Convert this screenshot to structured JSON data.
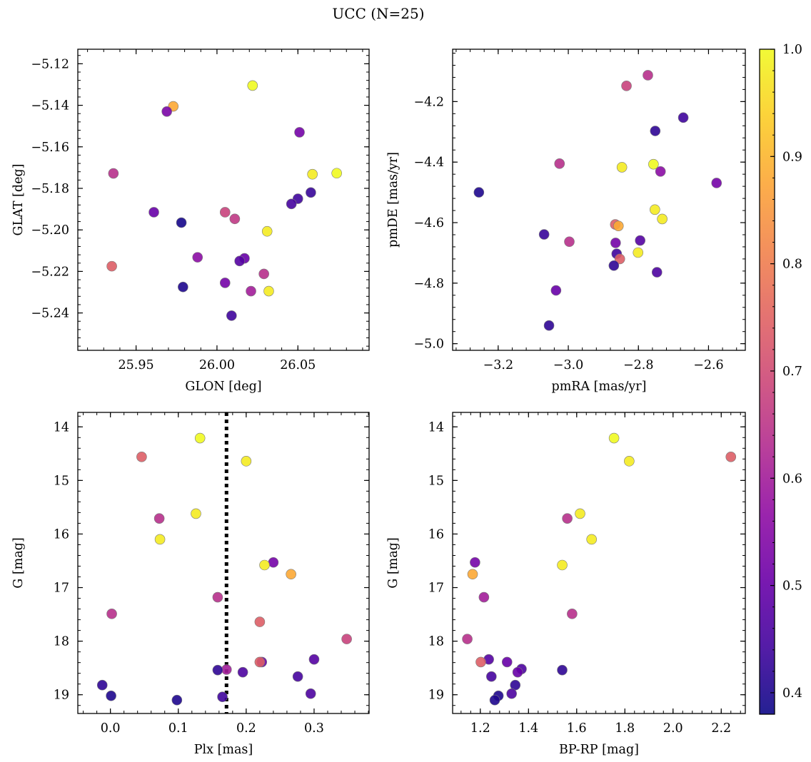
{
  "figure": {
    "title": "UCC (N=25)"
  },
  "colorbar": {
    "cmap": "plasma",
    "min": 0.38,
    "max": 1.0,
    "ticks": [
      0.4,
      0.5,
      0.6,
      0.7,
      0.8,
      0.9,
      1.0
    ],
    "tick_labels": [
      "0.4",
      "0.5",
      "0.6",
      "0.7",
      "0.8",
      "0.9",
      "1.0"
    ]
  },
  "chart_data": [
    {
      "type": "scatter",
      "xlabel": "GLON [deg]",
      "ylabel": "GLAT [deg]",
      "xlim": [
        25.914,
        26.094
      ],
      "ylim": [
        -5.258,
        -5.113
      ],
      "xticks": [
        25.95,
        26.0,
        26.05
      ],
      "xtick_labels": [
        "25.95",
        "26.00",
        "26.05"
      ],
      "yticks": [
        -5.24,
        -5.22,
        -5.2,
        -5.18,
        -5.16,
        -5.14,
        -5.12
      ],
      "ytick_labels": [
        "−5.24",
        "−5.22",
        "−5.20",
        "−5.18",
        "−5.16",
        "−5.14",
        "−5.12"
      ],
      "points": [
        {
          "x": 26.022,
          "y": -5.1305,
          "c": 1.0
        },
        {
          "x": 25.973,
          "y": -5.1405,
          "c": 0.88
        },
        {
          "x": 25.969,
          "y": -5.143,
          "c": 0.53
        },
        {
          "x": 26.051,
          "y": -5.153,
          "c": 0.52
        },
        {
          "x": 25.936,
          "y": -5.1728,
          "c": 0.64
        },
        {
          "x": 26.059,
          "y": -5.1732,
          "c": 0.98
        },
        {
          "x": 26.074,
          "y": -5.1727,
          "c": 1.0
        },
        {
          "x": 26.058,
          "y": -5.182,
          "c": 0.43
        },
        {
          "x": 26.05,
          "y": -5.185,
          "c": 0.44
        },
        {
          "x": 26.046,
          "y": -5.1875,
          "c": 0.45
        },
        {
          "x": 25.961,
          "y": -5.1915,
          "c": 0.5
        },
        {
          "x": 26.005,
          "y": -5.1915,
          "c": 0.68
        },
        {
          "x": 26.011,
          "y": -5.1947,
          "c": 0.66
        },
        {
          "x": 25.978,
          "y": -5.1965,
          "c": 0.39
        },
        {
          "x": 26.031,
          "y": -5.2007,
          "c": 0.98
        },
        {
          "x": 25.988,
          "y": -5.2132,
          "c": 0.56
        },
        {
          "x": 26.017,
          "y": -5.2137,
          "c": 0.5
        },
        {
          "x": 26.014,
          "y": -5.215,
          "c": 0.47
        },
        {
          "x": 25.935,
          "y": -5.2175,
          "c": 0.74
        },
        {
          "x": 26.029,
          "y": -5.2212,
          "c": 0.64
        },
        {
          "x": 26.005,
          "y": -5.2255,
          "c": 0.52
        },
        {
          "x": 25.979,
          "y": -5.2275,
          "c": 0.4
        },
        {
          "x": 26.021,
          "y": -5.2295,
          "c": 0.6
        },
        {
          "x": 26.032,
          "y": -5.2295,
          "c": 0.98
        },
        {
          "x": 26.009,
          "y": -5.2413,
          "c": 0.44
        }
      ]
    },
    {
      "type": "scatter",
      "xlabel": "pmRA [mas/yr]",
      "ylabel": "pmDE [mas/yr]",
      "xlim": [
        -3.33,
        -2.495
      ],
      "ylim": [
        -5.022,
        -4.027
      ],
      "xticks": [
        -3.2,
        -3.0,
        -2.8,
        -2.6
      ],
      "xtick_labels": [
        "−3.2",
        "−3.0",
        "−2.8",
        "−2.6"
      ],
      "yticks": [
        -5.0,
        -4.8,
        -4.6,
        -4.4,
        -4.2
      ],
      "ytick_labels": [
        "−5.0",
        "−4.8",
        "−4.6",
        "−4.4",
        "−4.2"
      ],
      "points": [
        {
          "x": -2.773,
          "y": -4.113,
          "c": 0.64
        },
        {
          "x": -2.834,
          "y": -4.148,
          "c": 0.68
        },
        {
          "x": -2.672,
          "y": -4.253,
          "c": 0.44
        },
        {
          "x": -2.752,
          "y": -4.297,
          "c": 0.42
        },
        {
          "x": -3.025,
          "y": -4.405,
          "c": 0.64
        },
        {
          "x": -2.847,
          "y": -4.417,
          "c": 0.98
        },
        {
          "x": -2.757,
          "y": -4.407,
          "c": 1.0
        },
        {
          "x": -2.737,
          "y": -4.431,
          "c": 0.56
        },
        {
          "x": -2.577,
          "y": -4.469,
          "c": 0.52
        },
        {
          "x": -3.255,
          "y": -4.5,
          "c": 0.4
        },
        {
          "x": -2.753,
          "y": -4.557,
          "c": 0.98
        },
        {
          "x": -2.732,
          "y": -4.588,
          "c": 0.98
        },
        {
          "x": -2.866,
          "y": -4.606,
          "c": 0.74
        },
        {
          "x": -2.857,
          "y": -4.611,
          "c": 0.88
        },
        {
          "x": -3.069,
          "y": -4.639,
          "c": 0.43
        },
        {
          "x": -2.997,
          "y": -4.663,
          "c": 0.64
        },
        {
          "x": -2.795,
          "y": -4.659,
          "c": 0.47
        },
        {
          "x": -2.865,
          "y": -4.667,
          "c": 0.52
        },
        {
          "x": -2.862,
          "y": -4.703,
          "c": 0.44
        },
        {
          "x": -2.801,
          "y": -4.699,
          "c": 0.98
        },
        {
          "x": -2.853,
          "y": -4.72,
          "c": 0.74
        },
        {
          "x": -2.87,
          "y": -4.742,
          "c": 0.42
        },
        {
          "x": -2.747,
          "y": -4.764,
          "c": 0.46
        },
        {
          "x": -3.035,
          "y": -4.824,
          "c": 0.5
        },
        {
          "x": -3.055,
          "y": -4.94,
          "c": 0.42
        }
      ]
    },
    {
      "type": "scatter",
      "xlabel": "Plx [mas]",
      "ylabel": "G [mag]",
      "xlim": [
        -0.048,
        0.381
      ],
      "ylim": [
        19.35,
        13.73
      ],
      "y_inverted": true,
      "vline": {
        "x": 0.171,
        "style": "dotted"
      },
      "xticks": [
        0.0,
        0.1,
        0.2,
        0.3
      ],
      "xtick_labels": [
        "0.0",
        "0.1",
        "0.2",
        "0.3"
      ],
      "yticks": [
        14,
        15,
        16,
        17,
        18,
        19
      ],
      "ytick_labels": [
        "14",
        "15",
        "16",
        "17",
        "18",
        "19"
      ],
      "points": [
        {
          "x": 0.132,
          "y": 14.21,
          "c": 1.0
        },
        {
          "x": 0.046,
          "y": 14.56,
          "c": 0.74
        },
        {
          "x": 0.2,
          "y": 14.64,
          "c": 0.98
        },
        {
          "x": 0.126,
          "y": 15.62,
          "c": 0.98
        },
        {
          "x": 0.072,
          "y": 15.71,
          "c": 0.64
        },
        {
          "x": 0.073,
          "y": 16.1,
          "c": 0.98
        },
        {
          "x": 0.24,
          "y": 16.53,
          "c": 0.52
        },
        {
          "x": 0.227,
          "y": 16.58,
          "c": 0.98
        },
        {
          "x": 0.266,
          "y": 16.75,
          "c": 0.88
        },
        {
          "x": 0.158,
          "y": 17.18,
          "c": 0.64
        },
        {
          "x": 0.002,
          "y": 17.49,
          "c": 0.64
        },
        {
          "x": 0.22,
          "y": 17.64,
          "c": 0.74
        },
        {
          "x": 0.348,
          "y": 17.96,
          "c": 0.68
        },
        {
          "x": 0.3,
          "y": 18.34,
          "c": 0.47
        },
        {
          "x": 0.223,
          "y": 18.39,
          "c": 0.5
        },
        {
          "x": 0.22,
          "y": 18.39,
          "c": 0.74
        },
        {
          "x": 0.171,
          "y": 18.53,
          "c": 0.6
        },
        {
          "x": 0.158,
          "y": 18.54,
          "c": 0.42
        },
        {
          "x": 0.195,
          "y": 18.58,
          "c": 0.46
        },
        {
          "x": 0.276,
          "y": 18.66,
          "c": 0.45
        },
        {
          "x": -0.012,
          "y": 18.82,
          "c": 0.42
        },
        {
          "x": 0.295,
          "y": 18.98,
          "c": 0.46
        },
        {
          "x": 0.001,
          "y": 19.02,
          "c": 0.4
        },
        {
          "x": 0.165,
          "y": 19.04,
          "c": 0.44
        },
        {
          "x": 0.098,
          "y": 19.1,
          "c": 0.4
        }
      ]
    },
    {
      "type": "scatter",
      "xlabel": "BP-RP [mag]",
      "ylabel": "G [mag]",
      "xlim": [
        1.085,
        2.3
      ],
      "ylim": [
        19.35,
        13.73
      ],
      "y_inverted": true,
      "xticks": [
        1.2,
        1.4,
        1.6,
        1.8,
        2.0,
        2.2
      ],
      "xtick_labels": [
        "1.2",
        "1.4",
        "1.6",
        "1.8",
        "2.0",
        "2.2"
      ],
      "yticks": [
        14,
        15,
        16,
        17,
        18,
        19
      ],
      "ytick_labels": [
        "14",
        "15",
        "16",
        "17",
        "18",
        "19"
      ],
      "points": [
        {
          "x": 1.755,
          "y": 14.21,
          "c": 1.0
        },
        {
          "x": 2.24,
          "y": 14.56,
          "c": 0.74
        },
        {
          "x": 1.818,
          "y": 14.64,
          "c": 0.98
        },
        {
          "x": 1.614,
          "y": 15.62,
          "c": 0.98
        },
        {
          "x": 1.561,
          "y": 15.71,
          "c": 0.64
        },
        {
          "x": 1.662,
          "y": 16.1,
          "c": 0.98
        },
        {
          "x": 1.178,
          "y": 16.53,
          "c": 0.52
        },
        {
          "x": 1.54,
          "y": 16.58,
          "c": 0.98
        },
        {
          "x": 1.168,
          "y": 16.75,
          "c": 0.88
        },
        {
          "x": 1.215,
          "y": 17.18,
          "c": 0.6
        },
        {
          "x": 1.581,
          "y": 17.49,
          "c": 0.64
        },
        {
          "x": 1.146,
          "y": 17.96,
          "c": 0.64
        },
        {
          "x": 1.235,
          "y": 18.34,
          "c": 0.47
        },
        {
          "x": 1.202,
          "y": 18.39,
          "c": 0.74
        },
        {
          "x": 1.311,
          "y": 18.39,
          "c": 0.5
        },
        {
          "x": 1.371,
          "y": 18.52,
          "c": 0.46
        },
        {
          "x": 1.54,
          "y": 18.54,
          "c": 0.42
        },
        {
          "x": 1.355,
          "y": 18.58,
          "c": 0.5
        },
        {
          "x": 1.246,
          "y": 18.66,
          "c": 0.45
        },
        {
          "x": 1.345,
          "y": 18.82,
          "c": 0.42
        },
        {
          "x": 1.33,
          "y": 18.98,
          "c": 0.46
        },
        {
          "x": 1.275,
          "y": 19.02,
          "c": 0.4
        },
        {
          "x": 1.26,
          "y": 19.1,
          "c": 0.4
        }
      ]
    }
  ]
}
